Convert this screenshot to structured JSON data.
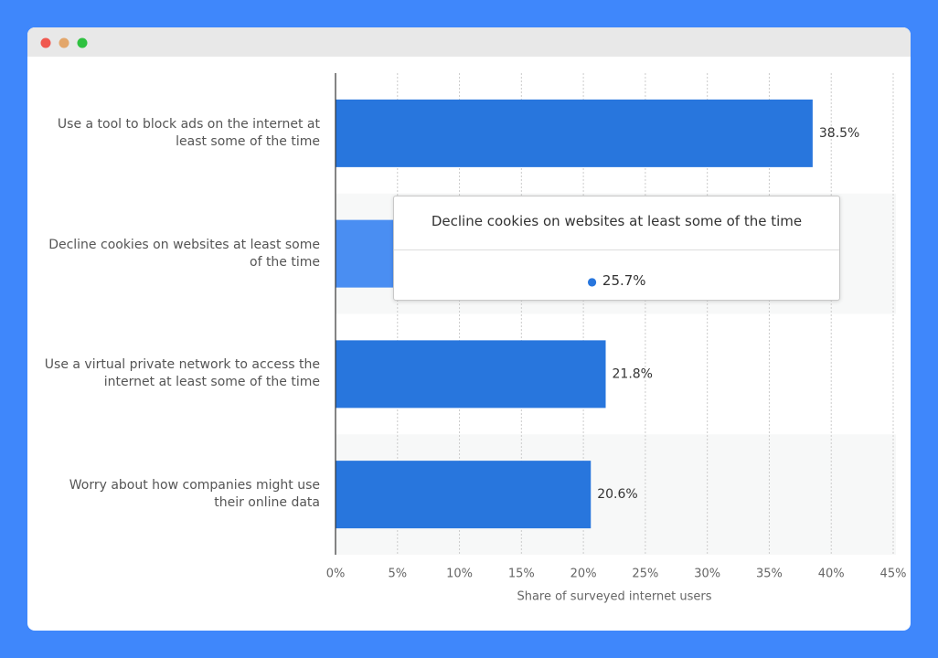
{
  "chart_data": {
    "type": "bar",
    "orientation": "horizontal",
    "categories": [
      "Use a tool to block ads on the internet at least some of the time",
      "Decline cookies on websites at least some of the time",
      "Use a virtual private network to access the internet at least some of the time",
      "Worry about how companies might use their online data"
    ],
    "values": [
      38.5,
      25.7,
      21.8,
      20.6
    ],
    "value_labels": [
      "38.5%",
      "25.7%",
      "21.8%",
      "20.6%"
    ],
    "color": "#2876dd",
    "highlight_color": "#4a8ef2",
    "highlight_index": 1,
    "xlabel": "Share of surveyed internet users",
    "xlim": [
      0,
      45
    ],
    "xticks": [
      {
        "value": 0,
        "label": "0%"
      },
      {
        "value": 5,
        "label": "5%"
      },
      {
        "value": 10,
        "label": "10%"
      },
      {
        "value": 15,
        "label": "15%"
      },
      {
        "value": 20,
        "label": "20%"
      },
      {
        "value": 25,
        "label": "25%"
      },
      {
        "value": 30,
        "label": "30%"
      },
      {
        "value": 35,
        "label": "35%"
      },
      {
        "value": 40,
        "label": "40%"
      },
      {
        "value": 45,
        "label": "45%"
      }
    ],
    "grid": true
  }
}
